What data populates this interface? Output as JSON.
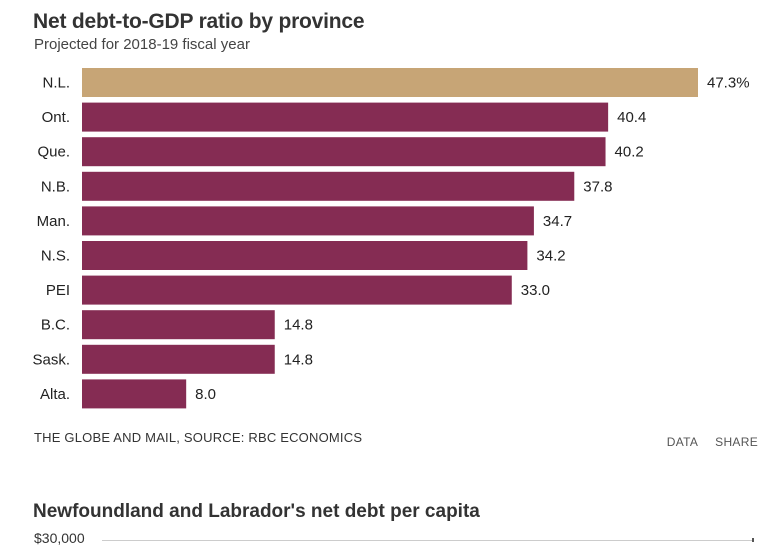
{
  "chart_data": [
    {
      "type": "bar",
      "orientation": "horizontal",
      "title": "Net debt-to-GDP ratio by province",
      "subtitle": "Projected for 2018-19 fiscal year",
      "categories": [
        "N.L.",
        "Ont.",
        "Que.",
        "N.B.",
        "Man.",
        "N.S.",
        "PEI",
        "B.C.",
        "Sask.",
        "Alta."
      ],
      "values": [
        47.3,
        40.4,
        40.2,
        37.8,
        34.7,
        34.2,
        33.0,
        14.8,
        14.8,
        8.0
      ],
      "value_labels": [
        "47.3%",
        "40.4",
        "40.2",
        "37.8",
        "34.7",
        "34.2",
        "33.0",
        "14.8",
        "14.8",
        "8.0"
      ],
      "bar_colors": [
        "#c7a576",
        "#852c53",
        "#852c53",
        "#852c53",
        "#852c53",
        "#852c53",
        "#852c53",
        "#852c53",
        "#852c53",
        "#852c53"
      ],
      "xlim": [
        0,
        47.3
      ],
      "grid": false,
      "legend": "none",
      "source": "THE GLOBE AND MAIL, SOURCE: RBC ECONOMICS"
    },
    {
      "type": "line",
      "title": "Newfoundland and Labrador's net debt per capita",
      "y_ticks": [
        "$30,000"
      ]
    }
  ],
  "actions": {
    "data_label": "DATA",
    "share_label": "SHARE"
  }
}
